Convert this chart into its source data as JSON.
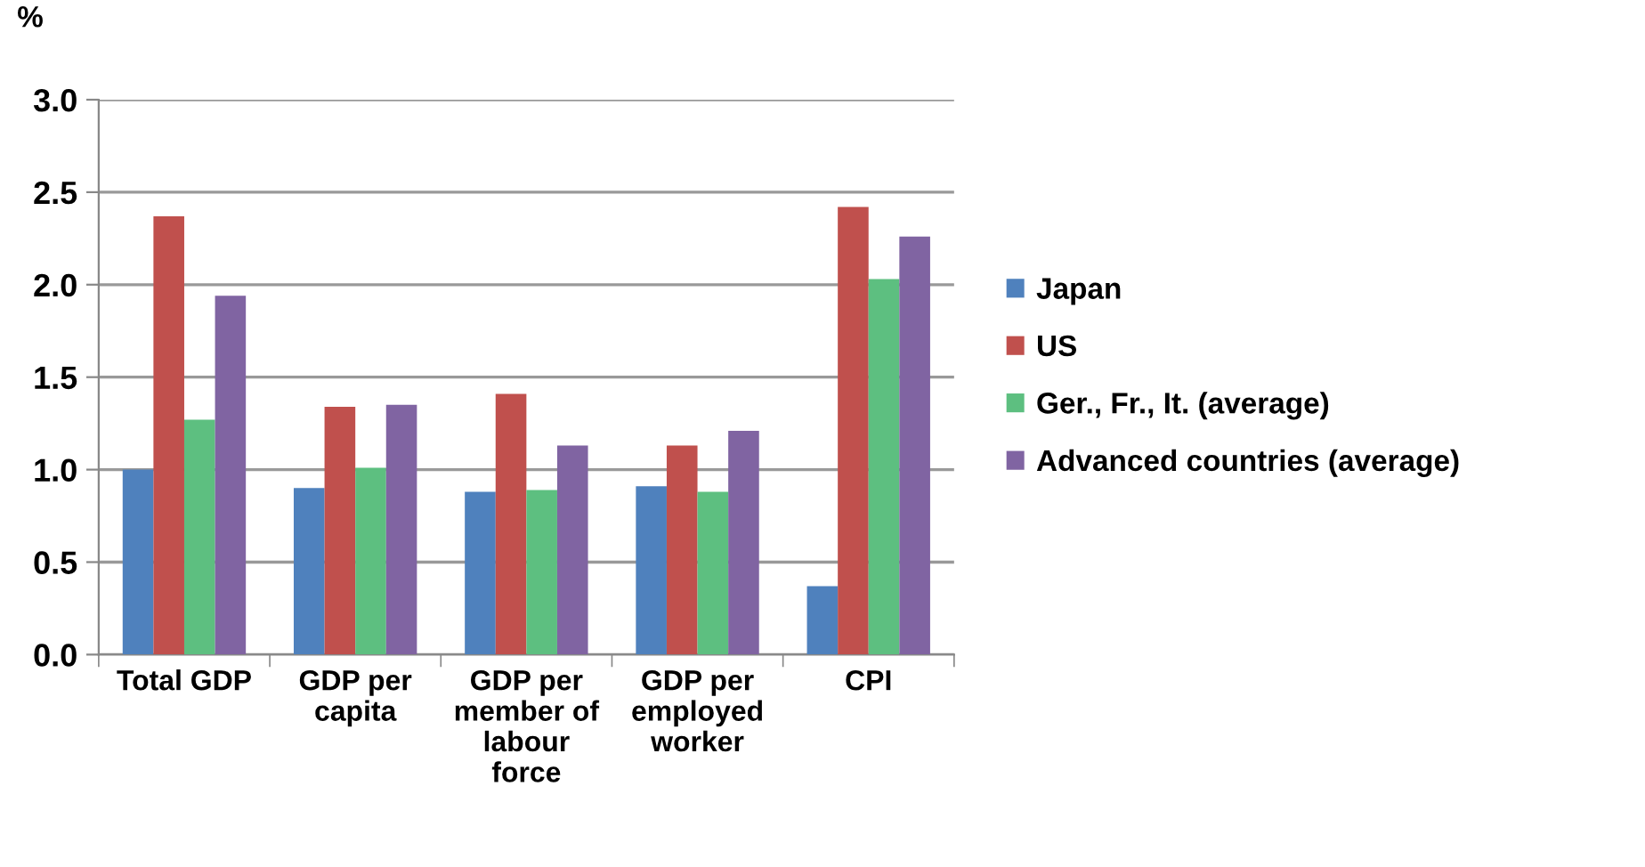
{
  "chart_data": {
    "type": "bar",
    "ylabel": "%",
    "categories": [
      "Total GDP",
      "GDP per\ncapita",
      "GDP per\nmember of\nlabour\nforce",
      "GDP per\nemployed\nworker",
      "CPI"
    ],
    "series": [
      {
        "name": "Japan",
        "color": "#4f81bd",
        "values": [
          1.0,
          0.9,
          0.88,
          0.91,
          0.37
        ]
      },
      {
        "name": "US",
        "color": "#c0504d",
        "values": [
          2.37,
          1.34,
          1.41,
          1.13,
          2.42
        ]
      },
      {
        "name": "Ger., Fr., It. (average)",
        "color": "#5dbf80",
        "values": [
          1.27,
          1.01,
          0.89,
          0.88,
          2.03
        ]
      },
      {
        "name": "Advanced countries (average)",
        "color": "#8064a2",
        "values": [
          1.94,
          1.35,
          1.13,
          1.21,
          2.26
        ]
      }
    ],
    "ylim": [
      0,
      3.0
    ],
    "yticks": [
      {
        "value": 0,
        "label": "0.0"
      },
      {
        "value": 0.5,
        "label": "0.5"
      },
      {
        "value": 1.0,
        "label": "1.0"
      },
      {
        "value": 1.5,
        "label": "1.5"
      },
      {
        "value": 2.0,
        "label": "2.0"
      },
      {
        "value": 2.5,
        "label": "2.5"
      },
      {
        "value": 3.0,
        "label": "3.0"
      }
    ],
    "grid": "y",
    "legend": "right"
  }
}
